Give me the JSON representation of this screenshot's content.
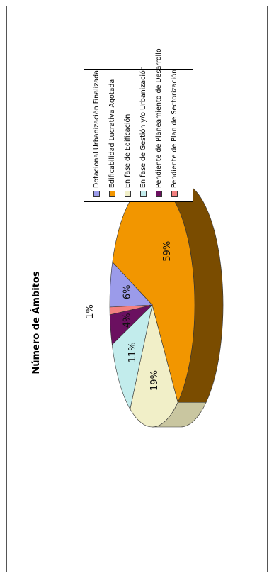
{
  "chart_data": {
    "type": "pie",
    "title": "Número de Ámbitos",
    "categories": [
      "Dotacional Urbanización Finalizada",
      "Edificabilidad Lucrativa Agotada",
      "En fase de Edificación",
      "En fase de Gestión y/o Urbanización",
      "Pendiente de Planeamiento de Desarrollo",
      "Pendiente de Plan de Sectorización"
    ],
    "values": [
      6,
      59,
      19,
      11,
      4,
      1
    ],
    "labels": [
      "6%",
      "59%",
      "19%",
      "11%",
      "4%",
      "1%"
    ],
    "colors": [
      "#9b9bea",
      "#f29600",
      "#f1efc8",
      "#c2ecec",
      "#6b1060",
      "#f28080"
    ],
    "side_colors": [
      "#5c5cb0",
      "#7a4c00",
      "#c9c6a0",
      "#8fbcbc",
      "#3e0838",
      "#b85858"
    ],
    "legend_position": "right"
  }
}
